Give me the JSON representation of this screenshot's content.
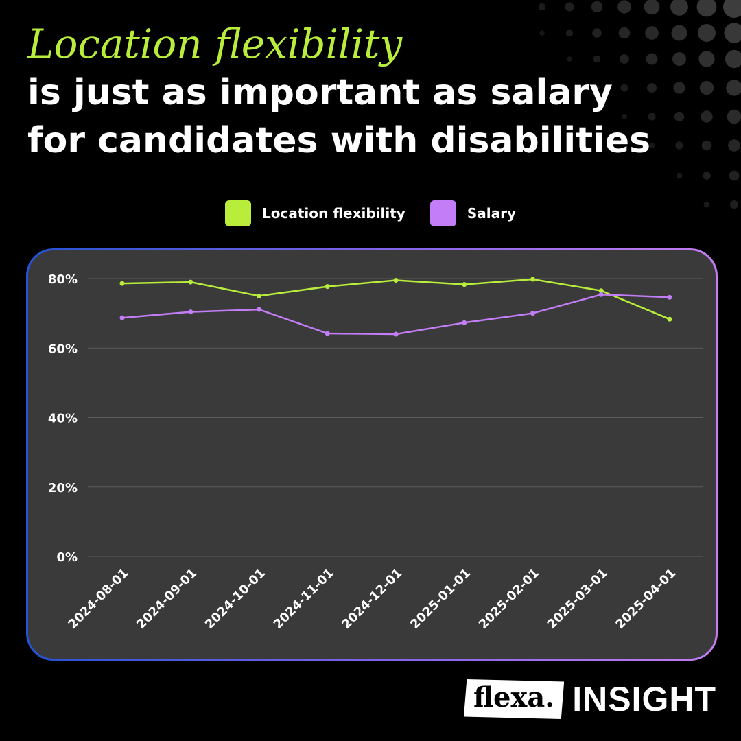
{
  "headline": {
    "accent": "Location flexibility",
    "line1": "is just as important as salary",
    "line2": "for candidates with disabilities"
  },
  "colors": {
    "background": "#000000",
    "panel": "#3a3a3a",
    "accent_green": "#b9ed3c",
    "accent_purple": "#c37ef7",
    "grid": "#5a5a5a"
  },
  "legend": [
    {
      "label": "Location flexibility",
      "color": "#b9ed3c"
    },
    {
      "label": "Salary",
      "color": "#c37ef7"
    }
  ],
  "chart_data": {
    "type": "line",
    "x": [
      "2024-08-01",
      "2024-09-01",
      "2024-10-01",
      "2024-11-01",
      "2024-12-01",
      "2025-01-01",
      "2025-02-01",
      "2025-03-01",
      "2025-04-01"
    ],
    "series": [
      {
        "name": "Location flexibility",
        "color": "#b9ed3c",
        "values": [
          78.6,
          79.0,
          75.0,
          77.7,
          79.5,
          78.3,
          79.8,
          76.5,
          68.3
        ]
      },
      {
        "name": "Salary",
        "color": "#c37ef7",
        "values": [
          68.7,
          70.4,
          71.1,
          64.2,
          64.0,
          67.3,
          70.0,
          75.4,
          74.6
        ]
      }
    ],
    "yticks": [
      "0%",
      "20%",
      "40%",
      "60%",
      "80%"
    ],
    "ylim": [
      0,
      80
    ],
    "grid": true,
    "legend_position": "top-center",
    "title": "",
    "xlabel": "",
    "ylabel": ""
  },
  "brand": {
    "logo": "flexa.",
    "label": "INSIGHT"
  }
}
